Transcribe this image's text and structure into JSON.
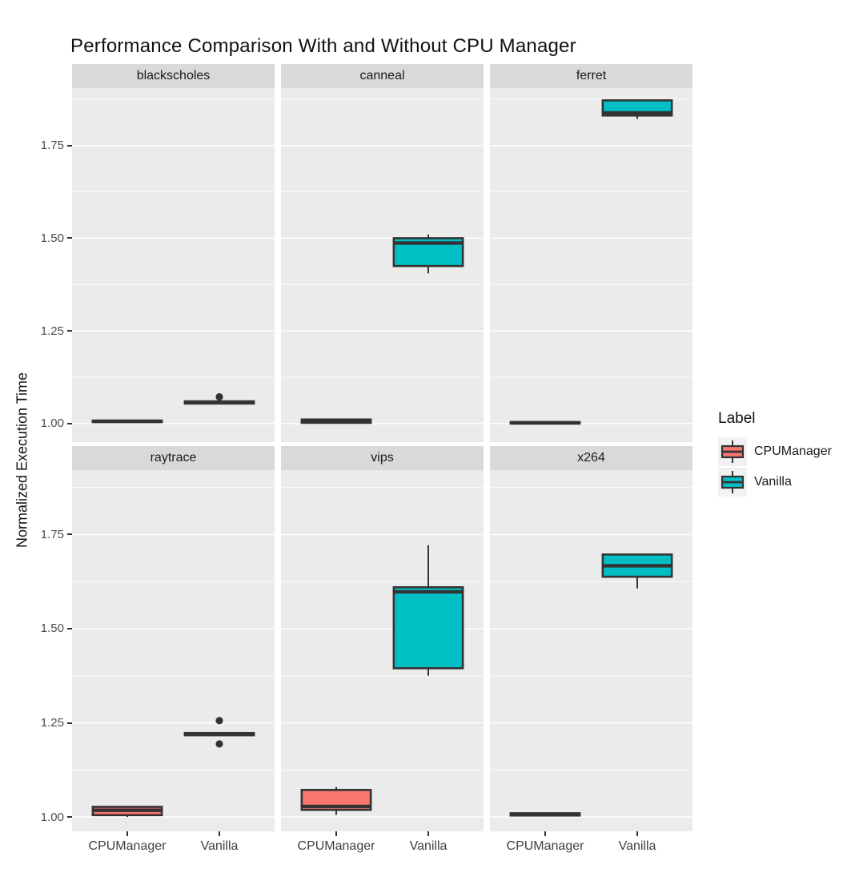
{
  "chart_data": {
    "type": "boxplot",
    "title": "Performance Comparison With and Without CPU Manager",
    "ylabel": "Normalized Execution Time",
    "xlabel": "",
    "categories": [
      "CPUManager",
      "Vanilla"
    ],
    "y_ticks": [
      1.0,
      1.25,
      1.5,
      1.75
    ],
    "y_tick_labels": [
      "1.00",
      "1.25",
      "1.50",
      "1.75"
    ],
    "y_minor_gridlines": [
      1.125,
      1.375,
      1.625,
      1.875
    ],
    "ylim": [
      0.95,
      1.92
    ],
    "grid": "white major and minor gridlines on grey panel",
    "facet_layout": {
      "ncol": 3,
      "nrow": 2
    },
    "legend": {
      "title": "Label",
      "position": "right",
      "items": [
        {
          "label": "CPUManager",
          "color": "#F8766D"
        },
        {
          "label": "Vanilla",
          "color": "#00BFC4"
        }
      ]
    },
    "facets": [
      {
        "label": "blackscholes",
        "boxes": [
          {
            "category": "CPUManager",
            "min": 1.002,
            "q1": 1.004,
            "median": 1.006,
            "q3": 1.008,
            "max": 1.01,
            "outliers": []
          },
          {
            "category": "Vanilla",
            "min": 1.052,
            "q1": 1.054,
            "median": 1.057,
            "q3": 1.06,
            "max": 1.062,
            "outliers": [
              1.072
            ]
          }
        ]
      },
      {
        "label": "canneal",
        "boxes": [
          {
            "category": "CPUManager",
            "min": 1.0,
            "q1": 1.002,
            "median": 1.006,
            "q3": 1.011,
            "max": 1.013,
            "outliers": []
          },
          {
            "category": "Vanilla",
            "min": 1.405,
            "q1": 1.425,
            "median": 1.487,
            "q3": 1.5,
            "max": 1.51,
            "outliers": []
          }
        ]
      },
      {
        "label": "ferret",
        "boxes": [
          {
            "category": "CPUManager",
            "min": 0.999,
            "q1": 1.0,
            "median": 1.002,
            "q3": 1.004,
            "max": 1.005,
            "outliers": []
          },
          {
            "category": "Vanilla",
            "min": 1.822,
            "q1": 1.831,
            "median": 1.838,
            "q3": 1.872,
            "max": 1.872,
            "outliers": []
          }
        ]
      },
      {
        "label": "raytrace",
        "boxes": [
          {
            "category": "CPUManager",
            "min": 1.0,
            "q1": 1.005,
            "median": 1.018,
            "q3": 1.027,
            "max": 1.029,
            "outliers": []
          },
          {
            "category": "Vanilla",
            "min": 1.215,
            "q1": 1.217,
            "median": 1.22,
            "q3": 1.223,
            "max": 1.225,
            "outliers": [
              1.256,
              1.194
            ]
          }
        ]
      },
      {
        "label": "vips",
        "boxes": [
          {
            "category": "CPUManager",
            "min": 1.006,
            "q1": 1.019,
            "median": 1.028,
            "q3": 1.072,
            "max": 1.08,
            "outliers": []
          },
          {
            "category": "Vanilla",
            "min": 1.375,
            "q1": 1.395,
            "median": 1.598,
            "q3": 1.61,
            "max": 1.722,
            "outliers": []
          }
        ]
      },
      {
        "label": "x264",
        "boxes": [
          {
            "category": "CPUManager",
            "min": 1.002,
            "q1": 1.004,
            "median": 1.007,
            "q3": 1.01,
            "max": 1.012,
            "outliers": []
          },
          {
            "category": "Vanilla",
            "min": 1.607,
            "q1": 1.638,
            "median": 1.667,
            "q3": 1.697,
            "max": 1.697,
            "outliers": []
          }
        ]
      }
    ],
    "colors": {
      "panel_background": "#EBEBEB",
      "strip_background": "#D9D9D9",
      "gridline": "#FFFFFF",
      "box_stroke": "#333333",
      "outlier": "#333333",
      "tick_text": "#4D4D4D",
      "strip_text": "#1A1A1A",
      "title_text": "#111111"
    }
  }
}
